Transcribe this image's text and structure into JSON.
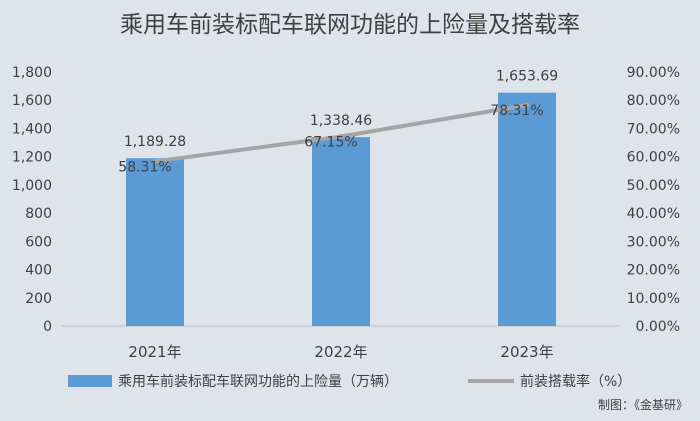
{
  "chart_data": {
    "type": "bar",
    "title": "乘用车前装标配车联网功能的上险量及搭载率",
    "categories": [
      "2021年",
      "2022年",
      "2023年"
    ],
    "series": [
      {
        "name": "乘用车前装标配车联网功能的上险量（万辆）",
        "type": "bar",
        "axis": "left",
        "values": [
          1189.28,
          1338.46,
          1653.69
        ],
        "labels": [
          "1,189.28",
          "1,338.46",
          "1,653.69"
        ],
        "color": "#5b9bd5"
      },
      {
        "name": "前装搭载率（%）",
        "type": "line",
        "axis": "right",
        "values": [
          58.31,
          67.15,
          78.31
        ],
        "labels": [
          "58.31%",
          "67.15%",
          "78.31%"
        ],
        "color": "#a5a5a5"
      }
    ],
    "y_left": {
      "range": [
        0,
        1800
      ],
      "ticks": [
        0,
        200,
        400,
        600,
        800,
        1000,
        1200,
        1400,
        1600,
        1800
      ],
      "tick_labels": [
        "0",
        "200",
        "400",
        "600",
        "800",
        "1,000",
        "1,200",
        "1,400",
        "1,600",
        "1,800"
      ]
    },
    "y_right": {
      "range": [
        0,
        90
      ],
      "ticks": [
        0,
        10,
        20,
        30,
        40,
        50,
        60,
        70,
        80,
        90
      ],
      "tick_labels": [
        "0.00%",
        "10.00%",
        "20.00%",
        "30.00%",
        "40.00%",
        "50.00%",
        "60.00%",
        "70.00%",
        "80.00%",
        "90.00%"
      ]
    },
    "grid": false,
    "legend": "bottom",
    "source": "制图：《金基研》"
  }
}
